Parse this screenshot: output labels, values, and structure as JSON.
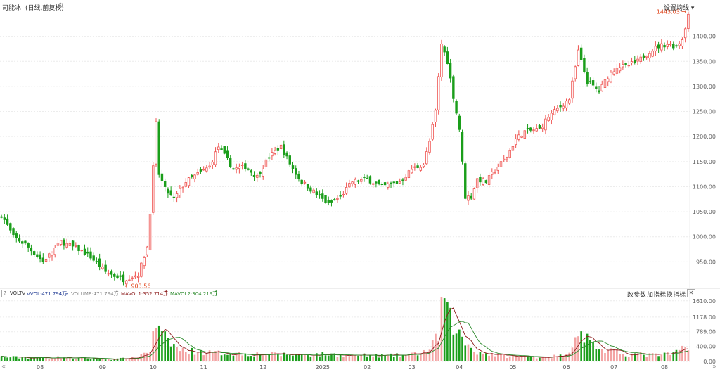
{
  "header": {
    "symbol_label": "司能冰",
    "period_label": "(日线,前复权)",
    "settings_label": "设置均线",
    "settings_caret": "▾"
  },
  "price_panel": {
    "high_marker": "1443.03",
    "low_marker": "903.56"
  },
  "volume_panel": {
    "indicator_name": "VOLTV",
    "vvol_label": "VVOL:471.794万",
    "vvol_arrow": "↓",
    "vol_label": "VOLUME:471.794万",
    "vol_arrow": "↑",
    "mavol1_label": "MAVOL1:352.714万",
    "mavol1_arrow": "↑",
    "mavol2_label": "MAVOL2:304.219万",
    "mavol2_arrow": "↑",
    "help_label": "?",
    "buttons": [
      "改参数",
      "加指标",
      "换指标"
    ],
    "close_label": "✕"
  },
  "nav": {
    "left": "«",
    "right": "»"
  },
  "colors": {
    "up": "#ef5350",
    "down": "#1b9e1b",
    "mavol1": "#8b1a1a",
    "mavol2": "#2e8b2e",
    "marker": "#e0441b"
  },
  "chart_data": {
    "type": "candlestick",
    "price_axis": {
      "min": 900,
      "max": 1450,
      "ticks": [
        "950.00",
        "1000.00",
        "1050.00",
        "1100.00",
        "1150.00",
        "1200.00",
        "1250.00",
        "1300.00",
        "1350.00",
        "1400.00"
      ]
    },
    "volume_axis": {
      "min": 0,
      "max": 1680,
      "ticks": [
        "0.00",
        "400.00",
        "789.00",
        "1178.00",
        "1610.00"
      ]
    },
    "x_axis_labels": [
      "08",
      "09",
      "10",
      "11",
      "12",
      "2025",
      "02",
      "03",
      "04",
      "05",
      "06",
      "07",
      "08"
    ],
    "x_axis_label_index": [
      13,
      34,
      51,
      68,
      88,
      108,
      123,
      138,
      154,
      172,
      190,
      206,
      223
    ],
    "close_keypoints": [
      [
        0,
        1045
      ],
      [
        4,
        1000
      ],
      [
        8,
        985
      ],
      [
        14,
        950
      ],
      [
        20,
        990
      ],
      [
        26,
        975
      ],
      [
        30,
        960
      ],
      [
        35,
        930
      ],
      [
        41,
        915
      ],
      [
        46,
        925
      ],
      [
        49,
        980
      ],
      [
        50,
        1050
      ],
      [
        52,
        1225
      ],
      [
        53,
        1125
      ],
      [
        55,
        1095
      ],
      [
        58,
        1075
      ],
      [
        62,
        1110
      ],
      [
        66,
        1125
      ],
      [
        70,
        1140
      ],
      [
        73,
        1180
      ],
      [
        78,
        1135
      ],
      [
        82,
        1140
      ],
      [
        86,
        1120
      ],
      [
        90,
        1160
      ],
      [
        94,
        1180
      ],
      [
        98,
        1135
      ],
      [
        101,
        1110
      ],
      [
        105,
        1090
      ],
      [
        110,
        1065
      ],
      [
        114,
        1080
      ],
      [
        118,
        1110
      ],
      [
        123,
        1115
      ],
      [
        128,
        1100
      ],
      [
        134,
        1110
      ],
      [
        138,
        1135
      ],
      [
        142,
        1145
      ],
      [
        144,
        1190
      ],
      [
        146,
        1250
      ],
      [
        148,
        1385
      ],
      [
        150,
        1350
      ],
      [
        152,
        1280
      ],
      [
        154,
        1215
      ],
      [
        156,
        1080
      ],
      [
        158,
        1080
      ],
      [
        160,
        1115
      ],
      [
        163,
        1110
      ],
      [
        167,
        1140
      ],
      [
        170,
        1160
      ],
      [
        173,
        1195
      ],
      [
        176,
        1210
      ],
      [
        181,
        1215
      ],
      [
        184,
        1240
      ],
      [
        188,
        1260
      ],
      [
        191,
        1275
      ],
      [
        194,
        1370
      ],
      [
        197,
        1310
      ],
      [
        201,
        1290
      ],
      [
        204,
        1320
      ],
      [
        207,
        1340
      ],
      [
        210,
        1340
      ],
      [
        214,
        1350
      ],
      [
        218,
        1370
      ],
      [
        221,
        1380
      ],
      [
        224,
        1385
      ],
      [
        227,
        1380
      ],
      [
        229,
        1395
      ],
      [
        231,
        1443
      ]
    ],
    "volume_keypoints": [
      [
        0,
        120
      ],
      [
        10,
        95
      ],
      [
        20,
        110
      ],
      [
        30,
        80
      ],
      [
        38,
        60
      ],
      [
        45,
        100
      ],
      [
        50,
        300
      ],
      [
        52,
        1000
      ],
      [
        54,
        650
      ],
      [
        56,
        550
      ],
      [
        60,
        300
      ],
      [
        70,
        230
      ],
      [
        80,
        210
      ],
      [
        90,
        190
      ],
      [
        100,
        180
      ],
      [
        110,
        190
      ],
      [
        120,
        160
      ],
      [
        130,
        150
      ],
      [
        138,
        180
      ],
      [
        144,
        300
      ],
      [
        147,
        700
      ],
      [
        148,
        1500
      ],
      [
        149,
        1610
      ],
      [
        150,
        1200
      ],
      [
        152,
        1000
      ],
      [
        154,
        700
      ],
      [
        156,
        500
      ],
      [
        160,
        250
      ],
      [
        170,
        140
      ],
      [
        180,
        120
      ],
      [
        190,
        150
      ],
      [
        194,
        900
      ],
      [
        196,
        700
      ],
      [
        198,
        500
      ],
      [
        202,
        300
      ],
      [
        210,
        200
      ],
      [
        220,
        170
      ],
      [
        226,
        200
      ],
      [
        231,
        450
      ]
    ],
    "bar_count": 232
  }
}
